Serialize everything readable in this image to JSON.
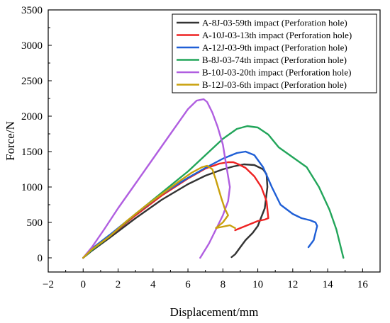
{
  "chart_data": {
    "type": "line",
    "title": "",
    "xlabel": "Displacement/mm",
    "ylabel": "Force/N",
    "xlim": [
      -2,
      17
    ],
    "ylim": [
      -200,
      3500
    ],
    "xticks": [
      -2,
      0,
      2,
      4,
      6,
      8,
      10,
      12,
      14,
      16
    ],
    "yticks": [
      0,
      500,
      1000,
      1500,
      2000,
      2500,
      3000,
      3500
    ],
    "legend_position": "top-right",
    "series": [
      {
        "name": "A-8J-03-59th impact (Perforation hole)",
        "color": "#333333",
        "x": [
          0,
          0.5,
          1.5,
          3,
          4.5,
          6,
          7,
          8,
          8.6,
          9.2,
          9.8,
          10.3,
          10.5,
          10.55,
          10.4,
          10,
          9.7,
          9.3,
          9.0,
          8.7,
          8.5
        ],
        "y": [
          0,
          100,
          280,
          560,
          820,
          1040,
          1160,
          1250,
          1290,
          1320,
          1310,
          1250,
          1180,
          1000,
          700,
          450,
          350,
          250,
          150,
          50,
          10
        ]
      },
      {
        "name": "A-10J-03-13th impact (Perforation hole)",
        "color": "#ee2222",
        "x": [
          0,
          0.5,
          1.5,
          3,
          4.5,
          6,
          7,
          7.8,
          8.3,
          8.6,
          8.9,
          9.3,
          9.8,
          10.2,
          10.5,
          10.6,
          10.4,
          10,
          9.5,
          9.0,
          8.7
        ],
        "y": [
          0,
          120,
          300,
          600,
          880,
          1120,
          1260,
          1330,
          1350,
          1350,
          1320,
          1270,
          1150,
          1000,
          800,
          560,
          540,
          520,
          470,
          420,
          390
        ]
      },
      {
        "name": "A-12J-03-9th impact (Perforation hole)",
        "color": "#1f5fd6",
        "x": [
          0,
          0.5,
          1.5,
          3,
          4.5,
          6,
          7,
          8,
          8.8,
          9.3,
          9.8,
          10.3,
          10.8,
          11.3,
          12.0,
          12.5,
          13.0,
          13.3,
          13.4,
          13.2,
          12.9
        ],
        "y": [
          0,
          130,
          320,
          620,
          900,
          1130,
          1270,
          1400,
          1480,
          1500,
          1450,
          1280,
          1000,
          750,
          620,
          560,
          530,
          500,
          450,
          250,
          150
        ]
      },
      {
        "name": "B-8J-03-74th impact (Perforation hole)",
        "color": "#22a55a",
        "x": [
          0,
          0.5,
          1.5,
          3,
          4.5,
          6,
          7,
          8,
          8.8,
          9.4,
          10,
          10.6,
          11.2,
          12,
          12.8,
          13.5,
          14.1,
          14.5,
          14.8,
          14.9
        ],
        "y": [
          0,
          110,
          300,
          620,
          920,
          1220,
          1450,
          1680,
          1820,
          1860,
          1840,
          1740,
          1560,
          1420,
          1280,
          1000,
          680,
          400,
          100,
          0
        ]
      },
      {
        "name": "B-10J-03-20th impact (Perforation hole)",
        "color": "#b05ee0",
        "x": [
          0,
          0.5,
          1.2,
          2,
          3,
          4,
          5,
          6,
          6.5,
          6.9,
          7.1,
          7.4,
          7.7,
          8.0,
          8.2,
          8.4,
          8.3,
          8.0,
          7.6,
          7.2,
          6.9,
          6.7
        ],
        "y": [
          0,
          150,
          400,
          700,
          1050,
          1400,
          1750,
          2100,
          2220,
          2240,
          2200,
          2050,
          1850,
          1600,
          1300,
          1000,
          800,
          600,
          400,
          200,
          80,
          0
        ]
      },
      {
        "name": "B-12J-03-6th impact (Perforation hole)",
        "color": "#c9a00c",
        "x": [
          0,
          0.5,
          1.5,
          2.5,
          3.5,
          4.5,
          5.5,
          6.2,
          6.8,
          7.1,
          7.4,
          7.6,
          7.9,
          8.1,
          8.3,
          8.0,
          7.6,
          8.0,
          8.4,
          8.7
        ],
        "y": [
          0,
          120,
          300,
          520,
          720,
          900,
          1080,
          1200,
          1280,
          1300,
          1250,
          1100,
          850,
          700,
          600,
          500,
          420,
          440,
          460,
          420
        ]
      }
    ]
  }
}
